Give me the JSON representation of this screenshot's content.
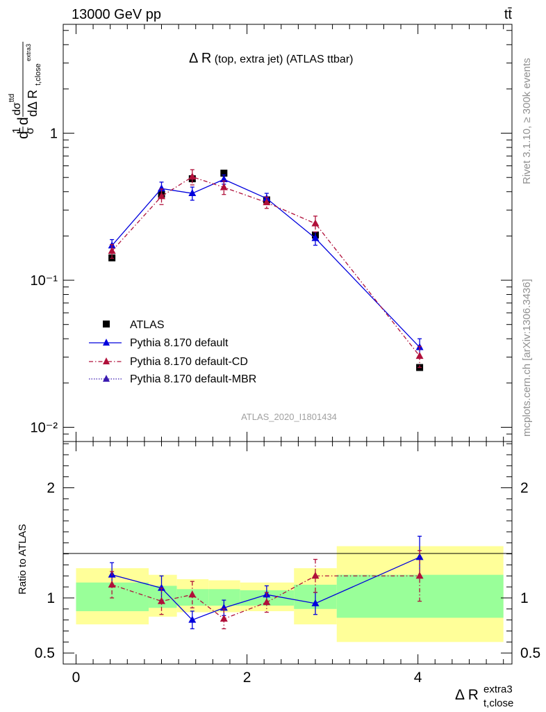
{
  "header": {
    "energy_label": "13000 GeV pp",
    "process_label": "tt̄"
  },
  "side_labels": {
    "rivet": "Rivet 3.1.10, ≥ 300k events",
    "mcplots": "mcplots.cern.ch [arXiv:1306.3436]"
  },
  "chart_data": [
    {
      "panel": "main",
      "type": "scatter",
      "title_main": "Δ R",
      "title_rest": " (top, extra jet) (ATLAS ttbar)",
      "analysis_id": "ATLAS_2020_I1801434",
      "ylabel": "d¹/σ dσᶦᴵᵈ / dΔ R t,close extra3",
      "yscale": "log",
      "xlim": [
        -0.15,
        5.1
      ],
      "ylim": [
        0.008,
        5.5
      ],
      "y_ticks": [
        {
          "value": 1,
          "label": "1"
        },
        {
          "value": 0.1,
          "label": "10⁻¹"
        },
        {
          "value": 0.01,
          "label": "10⁻²"
        }
      ],
      "x": [
        0.42,
        1.0,
        1.36,
        1.73,
        2.23,
        2.8,
        4.02
      ],
      "xerr_bins": [
        [
          0,
          0.85
        ],
        [
          0.85,
          1.18
        ],
        [
          1.18,
          1.55
        ],
        [
          1.55,
          1.92
        ],
        [
          1.92,
          2.55
        ],
        [
          2.55,
          3.05
        ],
        [
          3.05,
          5.0
        ]
      ],
      "series": [
        {
          "name": "ATLAS",
          "color": "#000000",
          "marker": "square",
          "values": [
            0.142,
            0.385,
            0.49,
            0.535,
            0.352,
            0.203,
            0.0255
          ]
        },
        {
          "name": "Pythia 8.170 default",
          "color": "#0000dd",
          "marker": "triangle",
          "line": "solid",
          "values": [
            0.172,
            0.42,
            0.39,
            0.485,
            0.36,
            0.193,
            0.035
          ],
          "errors": [
            0.017,
            0.045,
            0.04,
            0.035,
            0.03,
            0.02,
            0.005
          ]
        },
        {
          "name": "Pythia 8.170 default-CD",
          "color": "#b0103a",
          "marker": "triangle",
          "line": "dashdot",
          "values": [
            0.158,
            0.372,
            0.505,
            0.428,
            0.338,
            0.243,
            0.0305
          ],
          "errors": [
            0.017,
            0.045,
            0.06,
            0.045,
            0.03,
            0.03,
            0.005
          ]
        },
        {
          "name": "Pythia 8.170 default-MBR",
          "color": "#3a1ab0",
          "marker": "triangle",
          "line": "dotted",
          "legend_only": true
        }
      ]
    },
    {
      "panel": "ratio",
      "type": "scatter",
      "ylabel": "Ratio to ATLAS",
      "xlabel_main": "Δ R",
      "xlabel_sub": "t,close",
      "xlabel_sup": "extra3",
      "xlim": [
        -0.15,
        5.1
      ],
      "ylim": [
        0.4,
        2.42
      ],
      "y_ticks": [
        {
          "value": 2,
          "label": "2"
        },
        {
          "value": 1,
          "label": "1"
        },
        {
          "value": 0.5,
          "label": "0.5"
        }
      ],
      "x_ticks": [
        {
          "value": 0,
          "label": "0"
        },
        {
          "value": 2,
          "label": "2"
        },
        {
          "value": 4,
          "label": "4"
        }
      ],
      "bands": [
        {
          "x0": 0.0,
          "x1": 0.85,
          "green": [
            0.88,
            1.14
          ],
          "yellow": [
            0.76,
            1.27
          ]
        },
        {
          "x0": 0.85,
          "x1": 1.18,
          "green": [
            0.91,
            1.11
          ],
          "yellow": [
            0.83,
            1.21
          ]
        },
        {
          "x0": 1.18,
          "x1": 1.55,
          "green": [
            0.93,
            1.08
          ],
          "yellow": [
            0.87,
            1.17
          ]
        },
        {
          "x0": 1.55,
          "x1": 1.92,
          "green": [
            0.93,
            1.08
          ],
          "yellow": [
            0.87,
            1.16
          ]
        },
        {
          "x0": 1.92,
          "x1": 2.55,
          "green": [
            0.93,
            1.07
          ],
          "yellow": [
            0.88,
            1.14
          ]
        },
        {
          "x0": 2.55,
          "x1": 3.05,
          "green": [
            0.9,
            1.12
          ],
          "yellow": [
            0.76,
            1.27
          ]
        },
        {
          "x0": 3.05,
          "x1": 5.0,
          "green": [
            0.82,
            1.21
          ],
          "yellow": [
            0.6,
            1.47
          ]
        }
      ],
      "series": [
        {
          "name": "Pythia 8.170 default",
          "color": "#0000dd",
          "line": "solid",
          "values": [
            1.21,
            1.09,
            0.8,
            0.91,
            1.03,
            0.95,
            1.37
          ],
          "errors": [
            0.11,
            0.11,
            0.08,
            0.07,
            0.08,
            0.1,
            0.19
          ]
        },
        {
          "name": "Pythia 8.170 default-CD",
          "color": "#b0103a",
          "line": "dashdot",
          "values": [
            1.12,
            0.97,
            1.03,
            0.81,
            0.96,
            1.2,
            1.2
          ],
          "errors": [
            0.12,
            0.12,
            0.12,
            0.09,
            0.09,
            0.15,
            0.23
          ]
        }
      ]
    }
  ]
}
